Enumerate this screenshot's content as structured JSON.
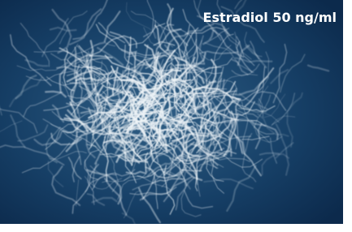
{
  "label": "Estradiol 50 ng/ml"
}
